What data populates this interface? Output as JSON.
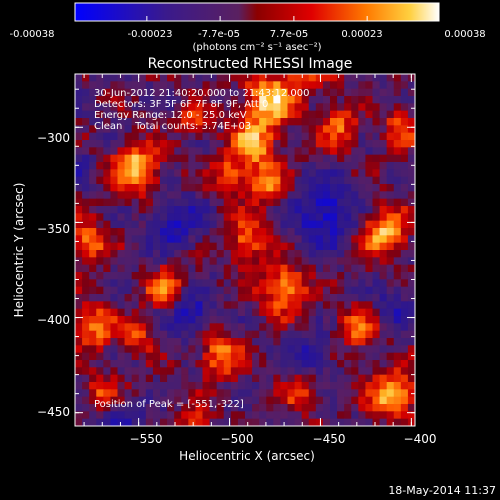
{
  "colorbar": {
    "tick_labels": [
      "-0.00038",
      "-0.00023",
      "-7.7e-05",
      "7.7e-05",
      "0.00023",
      "0.00038"
    ],
    "unit_label": "(photons cm⁻² s⁻¹ asec⁻²)",
    "range": [
      -0.00038,
      0.00038
    ]
  },
  "chart_data": {
    "type": "heatmap",
    "title": "Reconstructed RHESSI Image",
    "xlabel": "Heliocentric X (arcsec)",
    "ylabel": "Heliocentric Y (arcsec)",
    "xlim": [
      -585,
      -398
    ],
    "ylim": [
      -457,
      -272
    ],
    "x_ticks": [
      -550,
      -500,
      -450,
      -400
    ],
    "y_ticks": [
      -300,
      -350,
      -400,
      -450
    ],
    "x_tick_labels": [
      "−550",
      "−500",
      "−450",
      "−400"
    ],
    "y_tick_labels": [
      "−300",
      "−350",
      "−400",
      "−450"
    ],
    "annotations": [
      "30-Jun-2012 21:40:20.000 to 21:43:12.000",
      "Detectors: 3F 5F 6F 7F 8F 9F, Att 0",
      "Energy Range: 12.0 - 25.0 keV",
      "Clean    Total counts: 3.74E+03"
    ],
    "peak_label": "Position of Peak = [-551,-322]",
    "peak": [
      -551,
      -322
    ],
    "grid": false,
    "value_range": [
      -0.00038,
      0.00038
    ],
    "grid_size": [
      48,
      48
    ],
    "blobs": [
      {
        "x": -551,
        "y": -322,
        "s": 9,
        "a": 1.0
      },
      {
        "x": -478,
        "y": -285,
        "s": 10,
        "a": 0.95
      },
      {
        "x": -487,
        "y": -308,
        "s": 9,
        "a": 0.8
      },
      {
        "x": -480,
        "y": -330,
        "s": 8,
        "a": 0.7
      },
      {
        "x": -578,
        "y": -360,
        "s": 8,
        "a": 0.7
      },
      {
        "x": -575,
        "y": -405,
        "s": 8,
        "a": 0.75
      },
      {
        "x": -535,
        "y": -385,
        "s": 8,
        "a": 0.65
      },
      {
        "x": -570,
        "y": -440,
        "s": 7,
        "a": 0.55
      },
      {
        "x": -490,
        "y": -360,
        "s": 8,
        "a": 0.7
      },
      {
        "x": -470,
        "y": -385,
        "s": 9,
        "a": 0.85
      },
      {
        "x": -505,
        "y": -420,
        "s": 8,
        "a": 0.75
      },
      {
        "x": -440,
        "y": -300,
        "s": 8,
        "a": 0.6
      },
      {
        "x": -415,
        "y": -355,
        "s": 9,
        "a": 0.9
      },
      {
        "x": -430,
        "y": -405,
        "s": 8,
        "a": 0.6
      },
      {
        "x": -410,
        "y": -440,
        "s": 9,
        "a": 0.95
      },
      {
        "x": -460,
        "y": -440,
        "s": 7,
        "a": 0.5
      },
      {
        "x": -520,
        "y": -295,
        "s": 6,
        "a": 0.55
      },
      {
        "x": -550,
        "y": -410,
        "s": 6,
        "a": 0.55
      },
      {
        "x": -500,
        "y": -325,
        "s": 7,
        "a": 0.6
      },
      {
        "x": -455,
        "y": -270,
        "s": 8,
        "a": 0.6
      },
      {
        "x": -405,
        "y": -300,
        "s": 7,
        "a": 0.6
      },
      {
        "x": -518,
        "y": -455,
        "s": 6,
        "a": 0.5
      },
      {
        "x": -448,
        "y": -345,
        "s": 12,
        "a": -0.7
      },
      {
        "x": -530,
        "y": -350,
        "s": 10,
        "a": -0.55
      },
      {
        "x": -522,
        "y": -398,
        "s": 8,
        "a": -0.65
      },
      {
        "x": -455,
        "y": -420,
        "s": 8,
        "a": -0.45
      },
      {
        "x": -560,
        "y": -455,
        "s": 9,
        "a": -0.45
      },
      {
        "x": -410,
        "y": -395,
        "s": 8,
        "a": -0.4
      },
      {
        "x": -585,
        "y": -320,
        "s": 7,
        "a": -0.35
      }
    ]
  },
  "footer": {
    "date": "18-May-2014 11:37"
  }
}
